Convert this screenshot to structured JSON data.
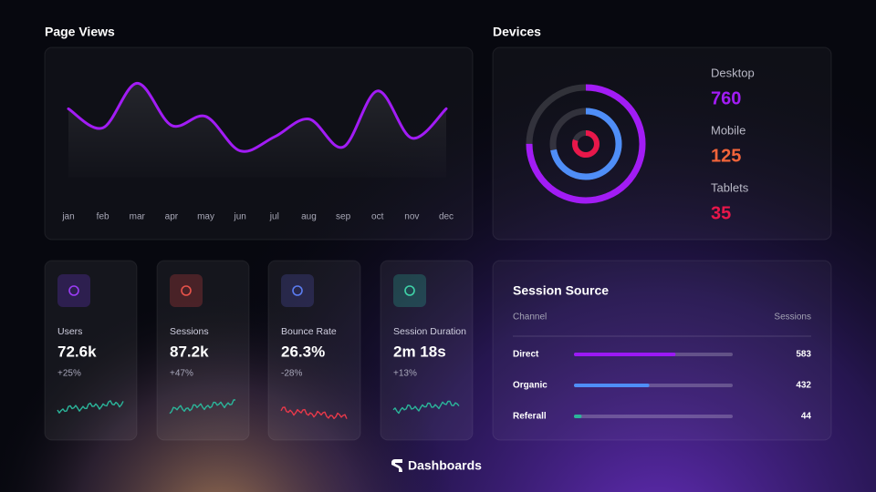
{
  "page_views": {
    "type": "line",
    "title": "Page Views",
    "categories": [
      "jan",
      "feb",
      "mar",
      "apr",
      "may",
      "jun",
      "jul",
      "aug",
      "sep",
      "oct",
      "nov",
      "dec"
    ],
    "values": [
      54,
      39,
      74,
      41,
      48,
      21,
      32,
      46,
      24,
      68,
      31,
      54
    ],
    "ylim": [
      0,
      100
    ],
    "color": "#a21cf5"
  },
  "devices": {
    "title": "Devices",
    "items": [
      {
        "name": "Desktop",
        "value": 760,
        "color": "#a21cf5"
      },
      {
        "name": "Mobile",
        "value": 125,
        "color": "#f2643a"
      },
      {
        "name": "Tablets",
        "value": 35,
        "color": "#e8174a"
      }
    ]
  },
  "kpis": [
    {
      "label": "Users",
      "value": "72.6k",
      "change": "+25%",
      "color": "#2bb59a"
    },
    {
      "label": "Sessions",
      "value": "87.2k",
      "change": "+47%",
      "color": "#2bb59a"
    },
    {
      "label": "Bounce Rate",
      "value": "26.3%",
      "change": "-28%",
      "color": "#e8394a"
    },
    {
      "label": "Session Duration",
      "value": "2m 18s",
      "change": "+13%",
      "color": "#2bb59a"
    }
  ],
  "session_source": {
    "title": "Session Source",
    "columns": [
      "Channel",
      "Sessions"
    ],
    "rows": [
      {
        "channel": "Direct",
        "sessions": 583,
        "color": "#9b19f5"
      },
      {
        "channel": "Organic",
        "sessions": 432,
        "color": "#4f8ef7"
      },
      {
        "channel": "Referall",
        "sessions": 44,
        "color": "#2bb59a"
      }
    ]
  },
  "footer": {
    "brand": "Dashboards"
  }
}
